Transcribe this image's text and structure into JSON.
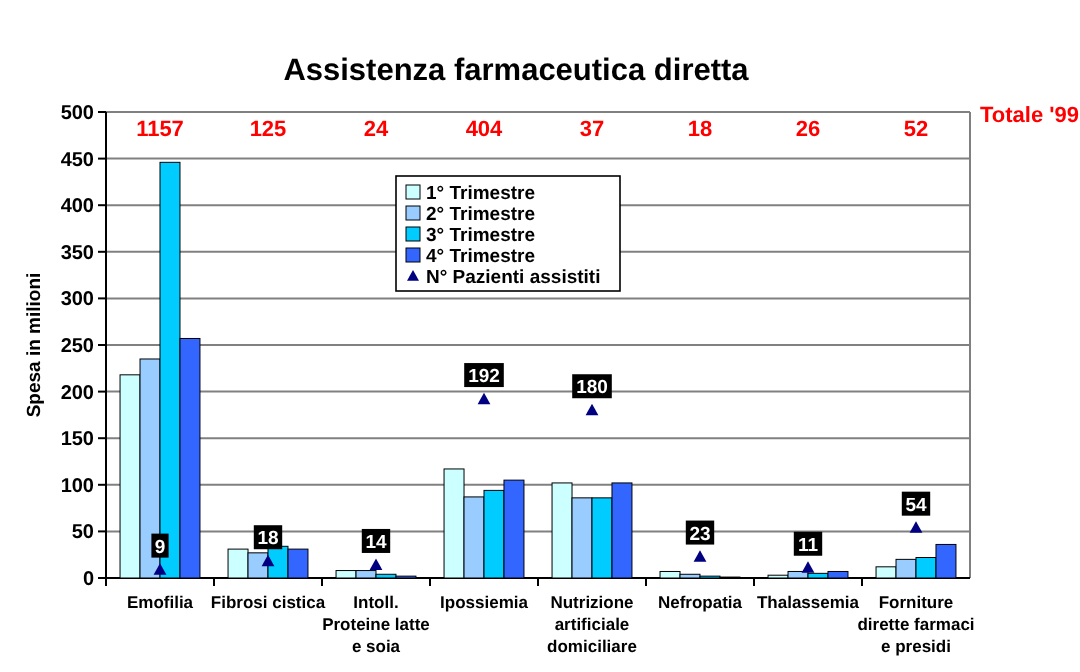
{
  "chart_data": {
    "type": "bar",
    "title": "Assistenza farmaceutica diretta",
    "ylabel": "Spesa in milioni",
    "categories": [
      "Emofilia",
      "Fibrosi cistica",
      "Intoll. Proteine latte e soia",
      "Ipossiemia",
      "Nutrizione artificiale domiciliare",
      "Nefropatia",
      "Thalassemia",
      "Forniture dirette farmaci e presidi"
    ],
    "series": [
      {
        "name": "1° Trimestre",
        "color": "#ccffff",
        "values": [
          218,
          31,
          8,
          117,
          102,
          7,
          3,
          12
        ]
      },
      {
        "name": "2° Trimestre",
        "color": "#99ccff",
        "values": [
          235,
          27,
          8,
          87,
          86,
          4,
          7,
          20
        ]
      },
      {
        "name": "3° Trimestre",
        "color": "#00ccff",
        "values": [
          446,
          34,
          4,
          94,
          86,
          2,
          5,
          22
        ]
      },
      {
        "name": "4° Trimestre",
        "color": "#3366ff",
        "values": [
          257,
          31,
          2,
          105,
          102,
          1,
          7,
          36
        ]
      },
      {
        "name": "N° Pazienti assistiti",
        "type": "scatter",
        "color": "#000080",
        "marker": "triangle",
        "data_labels": true,
        "values": [
          9,
          18,
          14,
          192,
          180,
          23,
          11,
          54
        ]
      }
    ],
    "annotations": [
      "1157",
      "125",
      "24",
      "404",
      "37",
      "18",
      "26",
      "52",
      "Totale '99"
    ],
    "ylim": [
      0,
      500
    ],
    "yticks": [
      0,
      50,
      100,
      150,
      200,
      250,
      300,
      350,
      400,
      450,
      500
    ],
    "grid": "y",
    "legend": "top"
  }
}
